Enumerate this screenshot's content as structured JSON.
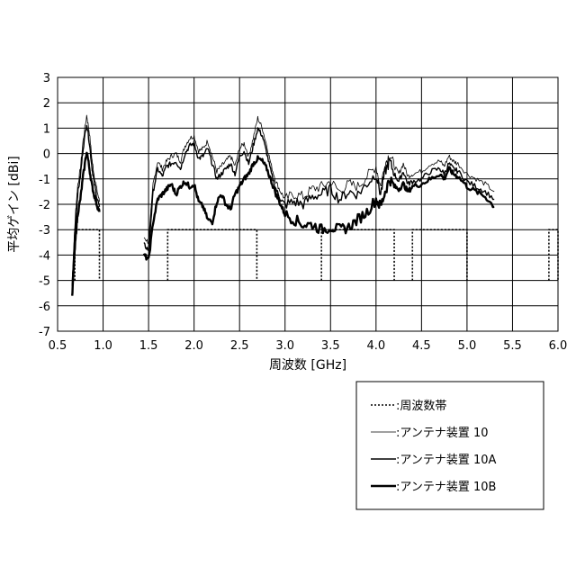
{
  "chart_data": {
    "type": "line",
    "xlabel": "周波数 [GHz]",
    "ylabel": "平均ゲイン [dBi]",
    "xlim": [
      0.5,
      6.0
    ],
    "ylim": [
      -7,
      3
    ],
    "x_ticks": [
      "0.5",
      "1.0",
      "1.5",
      "2.0",
      "2.5",
      "3.0",
      "3.5",
      "4.0",
      "4.5",
      "5.0",
      "5.5",
      "6.0"
    ],
    "y_ticks": [
      "3",
      "2",
      "1",
      "0",
      "-1",
      "-2",
      "-3",
      "-4",
      "-5",
      "-6",
      "-7"
    ],
    "grid": true,
    "legend_position": "bottom-right (below plot)",
    "legend": [
      {
        "label": ":周波数帯",
        "style": "dotted"
      },
      {
        "label": ":アンテナ装置 10",
        "style": "thin"
      },
      {
        "label": ":アンテナ装置 10A",
        "style": "medium"
      },
      {
        "label": ":アンテナ装置 10B",
        "style": "thick"
      }
    ],
    "frequency_bands": [
      {
        "x_start": 0.69,
        "x_end": 0.96,
        "top": -3,
        "bottom": -5
      },
      {
        "x_start": 1.71,
        "x_end": 2.69,
        "top": -3,
        "bottom": -5
      },
      {
        "x_start": 3.4,
        "x_end": 4.2,
        "top": -3,
        "bottom": -5
      },
      {
        "x_start": 4.4,
        "x_end": 5.0,
        "top": -3,
        "bottom": -5
      },
      {
        "x_start": 5.9,
        "x_end": 6.0,
        "top": -3,
        "bottom": -5
      }
    ],
    "series": [
      {
        "name": "アンテナ装置 10",
        "segments": [
          {
            "x": [
              0.66,
              0.68,
              0.7,
              0.72,
              0.75,
              0.78,
              0.82,
              0.85,
              0.88,
              0.9,
              0.93,
              0.96
            ],
            "y": [
              -5.0,
              -3.5,
              -2.2,
              -1.3,
              -0.6,
              0.5,
              1.5,
              0.8,
              -0.3,
              -0.8,
              -1.4,
              -1.9
            ]
          },
          {
            "x": [
              1.45,
              1.5,
              1.55,
              1.6,
              1.65,
              1.7,
              1.75,
              1.8,
              1.85,
              1.9,
              1.95,
              2.0,
              2.05,
              2.1,
              2.15,
              2.2,
              2.25,
              2.3,
              2.35,
              2.4,
              2.45,
              2.5,
              2.55,
              2.6,
              2.65,
              2.7,
              2.75,
              2.8,
              2.85,
              2.9,
              2.95,
              3.0,
              3.1,
              3.2,
              3.3,
              3.4,
              3.5,
              3.6,
              3.7,
              3.8,
              3.9,
              4.0,
              4.05,
              4.1,
              4.15,
              4.2,
              4.25,
              4.3,
              4.35,
              4.4,
              4.5,
              4.6,
              4.7,
              4.75,
              4.8,
              4.85,
              4.9,
              5.0,
              5.1,
              5.2,
              5.3
            ],
            "y": [
              -3.3,
              -3.5,
              -1.2,
              -0.3,
              -0.6,
              -0.3,
              -0.1,
              0.0,
              -0.3,
              0.3,
              0.6,
              0.7,
              0.1,
              0.2,
              0.5,
              -0.1,
              -0.7,
              -0.5,
              -0.3,
              -0.1,
              -0.5,
              0.2,
              0.4,
              -0.1,
              0.6,
              1.4,
              1.0,
              0.3,
              -0.5,
              -1.1,
              -1.5,
              -1.8,
              -1.6,
              -1.7,
              -1.4,
              -1.3,
              -1.1,
              -1.5,
              -1.2,
              -1.3,
              -0.9,
              -0.5,
              -1.3,
              -0.4,
              0.0,
              -0.5,
              -0.8,
              -0.4,
              -0.9,
              -0.8,
              -0.7,
              -0.4,
              -0.3,
              -0.5,
              -0.1,
              -0.3,
              -0.4,
              -0.8,
              -1.0,
              -1.2,
              -1.5
            ]
          }
        ]
      },
      {
        "name": "アンテナ装置 10A",
        "segments": [
          {
            "x": [
              0.66,
              0.68,
              0.7,
              0.72,
              0.75,
              0.78,
              0.82,
              0.85,
              0.88,
              0.9,
              0.93,
              0.96
            ],
            "y": [
              -5.3,
              -3.8,
              -2.6,
              -1.6,
              -0.9,
              0.2,
              1.2,
              0.4,
              -0.6,
              -1.1,
              -1.7,
              -2.1
            ]
          },
          {
            "x": [
              1.45,
              1.5,
              1.55,
              1.6,
              1.65,
              1.7,
              1.75,
              1.8,
              1.85,
              1.9,
              1.95,
              2.0,
              2.05,
              2.1,
              2.15,
              2.2,
              2.25,
              2.3,
              2.35,
              2.4,
              2.45,
              2.5,
              2.55,
              2.6,
              2.65,
              2.7,
              2.75,
              2.8,
              2.85,
              2.9,
              2.95,
              3.0,
              3.1,
              3.2,
              3.3,
              3.4,
              3.5,
              3.6,
              3.7,
              3.8,
              3.9,
              4.0,
              4.05,
              4.1,
              4.15,
              4.2,
              4.25,
              4.3,
              4.35,
              4.4,
              4.5,
              4.6,
              4.7,
              4.75,
              4.8,
              4.85,
              4.9,
              5.0,
              5.1,
              5.2,
              5.3
            ],
            "y": [
              -3.6,
              -3.8,
              -1.5,
              -0.6,
              -0.9,
              -0.5,
              -0.4,
              -0.3,
              -0.6,
              0.0,
              0.3,
              0.4,
              -0.2,
              -0.1,
              0.2,
              -0.4,
              -1.0,
              -0.8,
              -0.6,
              -0.4,
              -0.8,
              -0.1,
              0.1,
              -0.4,
              0.3,
              1.0,
              0.7,
              0.0,
              -0.8,
              -1.4,
              -1.8,
              -2.0,
              -1.9,
              -2.0,
              -1.7,
              -1.6,
              -1.4,
              -1.8,
              -1.5,
              -1.6,
              -1.2,
              -0.8,
              -1.6,
              -0.7,
              -0.3,
              -0.8,
              -1.1,
              -0.7,
              -1.2,
              -1.1,
              -1.0,
              -0.7,
              -0.6,
              -0.8,
              -0.4,
              -0.6,
              -0.7,
              -1.1,
              -1.3,
              -1.5,
              -1.8
            ]
          }
        ]
      },
      {
        "name": "アンテナ装置 10B",
        "segments": [
          {
            "x": [
              0.66,
              0.68,
              0.7,
              0.72,
              0.75,
              0.78,
              0.82,
              0.85,
              0.88,
              0.9,
              0.93,
              0.96
            ],
            "y": [
              -5.7,
              -4.3,
              -3.2,
              -2.4,
              -1.8,
              -0.9,
              0.1,
              -0.6,
              -1.3,
              -1.6,
              -2.0,
              -2.3
            ]
          },
          {
            "x": [
              1.45,
              1.5,
              1.55,
              1.6,
              1.65,
              1.7,
              1.75,
              1.8,
              1.85,
              1.9,
              1.95,
              2.0,
              2.05,
              2.1,
              2.15,
              2.2,
              2.25,
              2.3,
              2.35,
              2.4,
              2.45,
              2.5,
              2.55,
              2.6,
              2.65,
              2.7,
              2.75,
              2.8,
              2.85,
              2.9,
              2.95,
              3.0,
              3.1,
              3.2,
              3.3,
              3.4,
              3.5,
              3.6,
              3.7,
              3.8,
              3.9,
              4.0,
              4.05,
              4.1,
              4.15,
              4.2,
              4.25,
              4.3,
              4.35,
              4.4,
              4.5,
              4.6,
              4.7,
              4.75,
              4.8,
              4.85,
              4.9,
              5.0,
              5.1,
              5.2,
              5.3
            ],
            "y": [
              -4.0,
              -4.2,
              -2.7,
              -1.8,
              -1.6,
              -1.4,
              -1.2,
              -1.6,
              -1.3,
              -1.1,
              -1.3,
              -1.2,
              -1.9,
              -2.1,
              -2.6,
              -2.7,
              -1.9,
              -1.6,
              -2.0,
              -2.2,
              -1.6,
              -1.3,
              -1.0,
              -0.8,
              -0.4,
              -0.2,
              -0.3,
              -0.6,
              -1.1,
              -1.6,
              -2.0,
              -2.4,
              -2.6,
              -2.8,
              -2.8,
              -3.0,
              -2.9,
              -3.0,
              -2.9,
              -2.6,
              -2.3,
              -1.8,
              -2.1,
              -1.5,
              -1.0,
              -1.3,
              -1.4,
              -1.2,
              -1.5,
              -1.3,
              -1.2,
              -1.0,
              -0.8,
              -1.0,
              -0.6,
              -0.8,
              -0.9,
              -1.3,
              -1.5,
              -1.7,
              -2.1
            ]
          }
        ]
      }
    ]
  }
}
